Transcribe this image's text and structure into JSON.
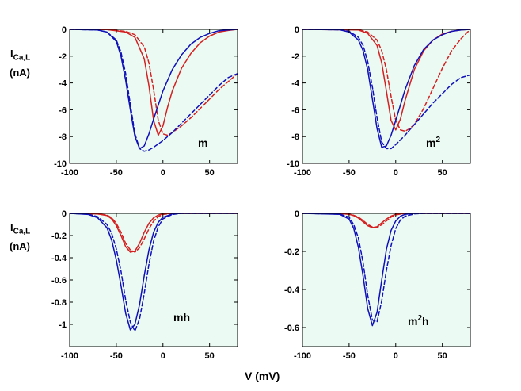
{
  "figure": {
    "xlabel": "V  (mV)",
    "ylabel_main": "I",
    "ylabel_sub": "Ca,L",
    "ylabel_unit": "(nA)",
    "colors": {
      "red": "#d42020",
      "blue": "#1010b8",
      "background": "#ebfbf4"
    }
  },
  "chart_data": [
    {
      "type": "line",
      "panel": "m",
      "label_base": "m",
      "label_sup": "",
      "xlim": [
        -100,
        80
      ],
      "ylim": [
        -10,
        0
      ],
      "xticks": [
        -100,
        -50,
        0,
        50
      ],
      "yticks": [
        0,
        -2,
        -4,
        -6,
        -8,
        -10
      ],
      "series": [
        {
          "name": "red-solid",
          "color": "red",
          "dash": false,
          "x": [
            -100,
            -60,
            -40,
            -30,
            -20,
            -15,
            -10,
            -5,
            0,
            5,
            10,
            20,
            30,
            40,
            50,
            60,
            70,
            80
          ],
          "y": [
            0,
            -0.02,
            -0.2,
            -0.6,
            -2.2,
            -4.2,
            -6.8,
            -7.9,
            -7.2,
            -5.8,
            -4.6,
            -2.9,
            -1.8,
            -1.0,
            -0.5,
            -0.2,
            -0.08,
            0
          ]
        },
        {
          "name": "red-dashed",
          "color": "red",
          "dash": true,
          "x": [
            -100,
            -60,
            -40,
            -30,
            -20,
            -15,
            -10,
            -5,
            0,
            5,
            10,
            20,
            30,
            40,
            50,
            60,
            70,
            80
          ],
          "y": [
            0,
            -0.02,
            -0.15,
            -0.4,
            -1.3,
            -2.5,
            -4.5,
            -6.8,
            -7.8,
            -7.9,
            -7.7,
            -7.2,
            -6.6,
            -5.9,
            -5.2,
            -4.5,
            -3.9,
            -3.3
          ]
        },
        {
          "name": "blue-solid",
          "color": "blue",
          "dash": false,
          "x": [
            -100,
            -70,
            -60,
            -50,
            -45,
            -40,
            -35,
            -30,
            -25,
            -20,
            -15,
            -10,
            0,
            10,
            20,
            30,
            40,
            50,
            60,
            70,
            80
          ],
          "y": [
            0,
            -0.05,
            -0.2,
            -0.9,
            -2.0,
            -3.8,
            -6.0,
            -8.0,
            -8.9,
            -8.7,
            -7.8,
            -6.7,
            -4.6,
            -3.0,
            -1.9,
            -1.1,
            -0.6,
            -0.3,
            -0.1,
            -0.05,
            0
          ]
        },
        {
          "name": "blue-dashed",
          "color": "blue",
          "dash": true,
          "x": [
            -100,
            -70,
            -60,
            -50,
            -45,
            -40,
            -35,
            -30,
            -25,
            -20,
            -15,
            -10,
            0,
            10,
            20,
            30,
            40,
            50,
            60,
            70,
            80
          ],
          "y": [
            0,
            -0.05,
            -0.2,
            -0.8,
            -1.7,
            -3.3,
            -5.6,
            -7.8,
            -8.9,
            -9.1,
            -9.0,
            -8.8,
            -8.3,
            -7.7,
            -7.0,
            -6.3,
            -5.6,
            -4.9,
            -4.2,
            -3.6,
            -3.3
          ]
        }
      ]
    },
    {
      "type": "line",
      "panel": "m2",
      "label_base": "m",
      "label_sup": "2",
      "xlim": [
        -100,
        80
      ],
      "ylim": [
        -10,
        0
      ],
      "xticks": [
        -100,
        -50,
        0,
        50
      ],
      "yticks": [
        0,
        -2,
        -4,
        -6,
        -8,
        -10
      ],
      "series": [
        {
          "name": "red-solid",
          "color": "red",
          "dash": false,
          "x": [
            -100,
            -40,
            -30,
            -20,
            -15,
            -10,
            -5,
            0,
            5,
            10,
            20,
            30,
            40,
            50,
            60,
            70,
            80
          ],
          "y": [
            0,
            -0.05,
            -0.3,
            -1.2,
            -2.5,
            -4.6,
            -6.8,
            -7.5,
            -6.7,
            -5.3,
            -3.0,
            -1.6,
            -0.8,
            -0.35,
            -0.15,
            -0.05,
            0
          ]
        },
        {
          "name": "red-dashed",
          "color": "red",
          "dash": true,
          "x": [
            -100,
            -40,
            -30,
            -20,
            -15,
            -10,
            -5,
            0,
            5,
            10,
            15,
            20,
            30,
            40,
            50,
            60,
            70,
            80
          ],
          "y": [
            0,
            -0.03,
            -0.2,
            -0.8,
            -1.6,
            -3.0,
            -5.0,
            -6.8,
            -7.5,
            -7.6,
            -7.4,
            -7.1,
            -5.9,
            -4.4,
            -2.9,
            -1.6,
            -0.7,
            0
          ]
        },
        {
          "name": "blue-solid",
          "color": "blue",
          "dash": false,
          "x": [
            -100,
            -60,
            -50,
            -40,
            -35,
            -30,
            -25,
            -20,
            -15,
            -10,
            -5,
            0,
            10,
            20,
            30,
            40,
            50,
            60,
            70,
            80
          ],
          "y": [
            0,
            -0.03,
            -0.2,
            -0.8,
            -1.6,
            -3.0,
            -5.2,
            -7.4,
            -8.8,
            -8.7,
            -7.9,
            -6.8,
            -4.5,
            -2.7,
            -1.5,
            -0.8,
            -0.4,
            -0.15,
            -0.05,
            0
          ]
        },
        {
          "name": "blue-dashed",
          "color": "blue",
          "dash": true,
          "x": [
            -100,
            -60,
            -50,
            -40,
            -35,
            -30,
            -25,
            -20,
            -15,
            -10,
            -5,
            0,
            10,
            20,
            30,
            40,
            50,
            60,
            70,
            80
          ],
          "y": [
            0,
            -0.03,
            -0.15,
            -0.6,
            -1.2,
            -2.4,
            -4.3,
            -6.6,
            -8.4,
            -8.9,
            -8.9,
            -8.6,
            -7.9,
            -7.1,
            -6.3,
            -5.5,
            -4.8,
            -4.1,
            -3.6,
            -3.4
          ]
        }
      ]
    },
    {
      "type": "line",
      "panel": "mh",
      "label_base": "mh",
      "label_sup": "",
      "xlim": [
        -100,
        80
      ],
      "ylim": [
        -1.2,
        0
      ],
      "xticks": [
        -100,
        -50,
        0,
        50
      ],
      "yticks": [
        0,
        -0.2,
        -0.4,
        -0.6,
        -0.8,
        -1
      ],
      "series": [
        {
          "name": "red-solid",
          "color": "red",
          "dash": false,
          "x": [
            -100,
            -70,
            -60,
            -55,
            -50,
            -45,
            -40,
            -35,
            -30,
            -25,
            -20,
            -15,
            -10,
            -5,
            0,
            10,
            30,
            80
          ],
          "y": [
            0,
            -0.005,
            -0.02,
            -0.05,
            -0.11,
            -0.2,
            -0.3,
            -0.35,
            -0.34,
            -0.27,
            -0.17,
            -0.09,
            -0.04,
            -0.015,
            -0.005,
            0,
            0,
            0
          ]
        },
        {
          "name": "red-dashed",
          "color": "red",
          "dash": true,
          "x": [
            -100,
            -70,
            -60,
            -55,
            -50,
            -45,
            -40,
            -35,
            -30,
            -25,
            -20,
            -15,
            -10,
            -5,
            0,
            10,
            30,
            80
          ],
          "y": [
            0,
            -0.005,
            -0.015,
            -0.04,
            -0.09,
            -0.17,
            -0.27,
            -0.33,
            -0.35,
            -0.31,
            -0.23,
            -0.14,
            -0.07,
            -0.03,
            -0.01,
            0,
            0,
            0
          ]
        },
        {
          "name": "blue-solid",
          "color": "blue",
          "dash": false,
          "x": [
            -100,
            -80,
            -70,
            -60,
            -55,
            -50,
            -45,
            -40,
            -35,
            -30,
            -25,
            -20,
            -15,
            -10,
            -5,
            0,
            10,
            20,
            30,
            80
          ],
          "y": [
            0,
            -0.01,
            -0.04,
            -0.13,
            -0.24,
            -0.42,
            -0.65,
            -0.9,
            -1.05,
            -1.0,
            -0.82,
            -0.56,
            -0.33,
            -0.17,
            -0.08,
            -0.035,
            -0.006,
            0,
            0,
            0
          ]
        },
        {
          "name": "blue-dashed",
          "color": "blue",
          "dash": true,
          "x": [
            -100,
            -80,
            -70,
            -60,
            -55,
            -50,
            -45,
            -40,
            -35,
            -30,
            -25,
            -20,
            -15,
            -10,
            -5,
            0,
            10,
            20,
            30,
            80
          ],
          "y": [
            0,
            -0.008,
            -0.03,
            -0.1,
            -0.18,
            -0.32,
            -0.52,
            -0.78,
            -0.98,
            -1.06,
            -0.95,
            -0.72,
            -0.46,
            -0.25,
            -0.12,
            -0.05,
            -0.01,
            0,
            0,
            0
          ]
        }
      ]
    },
    {
      "type": "line",
      "panel": "m2h",
      "label_base": "m",
      "label_sup": "2",
      "label_tail": "h",
      "xlim": [
        -100,
        80
      ],
      "ylim": [
        -0.7,
        0
      ],
      "xticks": [
        -100,
        -50,
        0,
        50
      ],
      "yticks": [
        0,
        -0.2,
        -0.4,
        -0.6
      ],
      "series": [
        {
          "name": "red-solid",
          "color": "red",
          "dash": false,
          "x": [
            -100,
            -60,
            -50,
            -45,
            -40,
            -35,
            -30,
            -25,
            -20,
            -15,
            -10,
            -5,
            0,
            10,
            80
          ],
          "y": [
            0,
            -0.001,
            -0.005,
            -0.012,
            -0.025,
            -0.045,
            -0.065,
            -0.075,
            -0.07,
            -0.05,
            -0.03,
            -0.014,
            -0.005,
            0,
            0
          ]
        },
        {
          "name": "red-dashed",
          "color": "red",
          "dash": true,
          "x": [
            -100,
            -60,
            -50,
            -45,
            -40,
            -35,
            -30,
            -25,
            -20,
            -15,
            -10,
            -5,
            0,
            10,
            80
          ],
          "y": [
            0,
            -0.001,
            -0.004,
            -0.01,
            -0.02,
            -0.038,
            -0.058,
            -0.072,
            -0.074,
            -0.06,
            -0.04,
            -0.02,
            -0.008,
            0,
            0
          ]
        },
        {
          "name": "blue-solid",
          "color": "blue",
          "dash": false,
          "x": [
            -100,
            -60,
            -50,
            -45,
            -40,
            -35,
            -30,
            -25,
            -20,
            -15,
            -10,
            -5,
            0,
            5,
            10,
            20,
            80
          ],
          "y": [
            0,
            -0.005,
            -0.03,
            -0.08,
            -0.18,
            -0.33,
            -0.5,
            -0.59,
            -0.52,
            -0.35,
            -0.19,
            -0.09,
            -0.04,
            -0.015,
            -0.005,
            0,
            0
          ]
        },
        {
          "name": "blue-dashed",
          "color": "blue",
          "dash": true,
          "x": [
            -100,
            -60,
            -50,
            -45,
            -40,
            -35,
            -30,
            -25,
            -20,
            -15,
            -10,
            -5,
            0,
            5,
            10,
            20,
            30,
            80
          ],
          "y": [
            0,
            -0.004,
            -0.02,
            -0.06,
            -0.13,
            -0.26,
            -0.43,
            -0.56,
            -0.57,
            -0.46,
            -0.3,
            -0.17,
            -0.08,
            -0.035,
            -0.015,
            -0.003,
            0,
            0
          ]
        }
      ]
    }
  ]
}
